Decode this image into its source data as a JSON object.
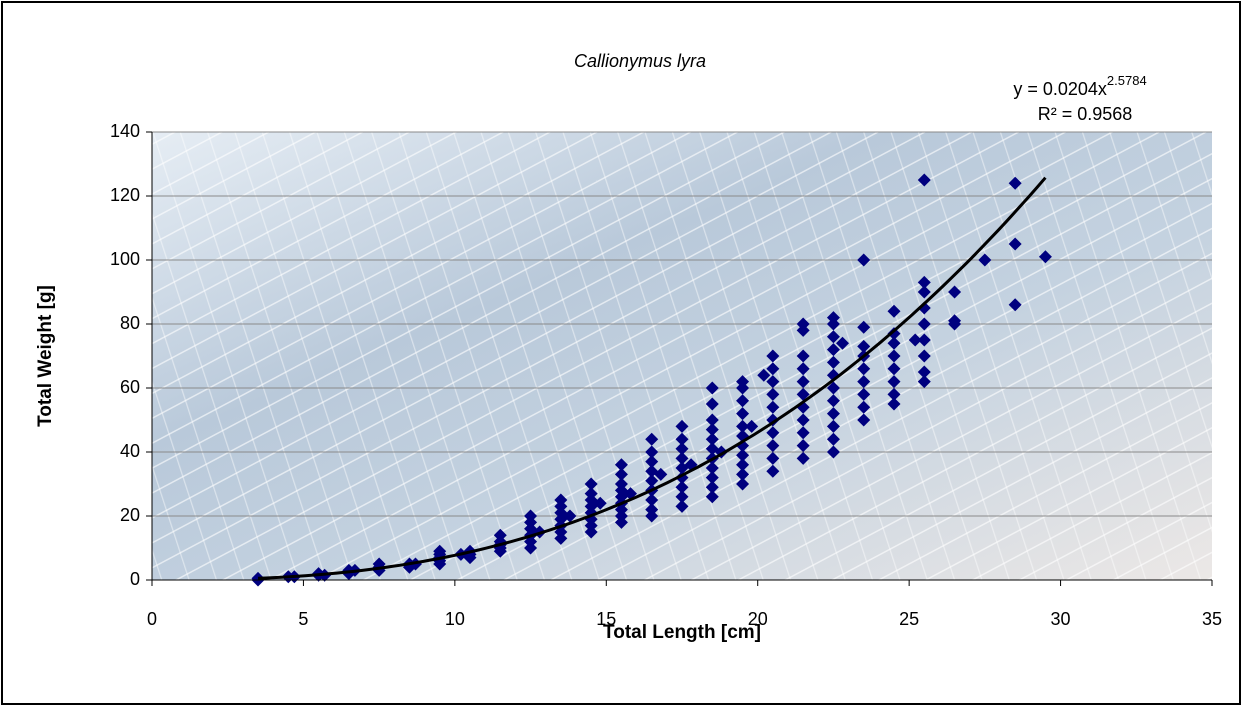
{
  "chart_data": {
    "type": "scatter",
    "title": "Callionymus lyra",
    "x_label": "Total Length [cm]",
    "y_label": "Total Weight [g]",
    "color": "#00007f",
    "xlim": [
      0,
      35
    ],
    "xticks": [
      0,
      5,
      10,
      15,
      20,
      25,
      30,
      35
    ],
    "ylim": [
      0,
      140
    ],
    "yticks": [
      0,
      20,
      40,
      60,
      80,
      100,
      120,
      140
    ],
    "grid": true,
    "x": [
      3.5,
      3.5,
      4.5,
      4.7,
      5.5,
      5.5,
      5.7,
      6.5,
      6.5,
      6.7,
      7.5,
      7.5,
      7.5,
      8.5,
      8.5,
      8.7,
      9.5,
      9.5,
      9.5,
      9.5,
      9.5,
      10.5,
      10.5,
      10.5,
      10.2,
      11.5,
      11.5,
      11.5,
      11.5,
      11.5,
      12.5,
      12.5,
      12.5,
      12.5,
      12.5,
      12.5,
      12.8,
      13.5,
      13.5,
      13.5,
      13.5,
      13.5,
      13.5,
      13.5,
      13.8,
      14.5,
      14.5,
      14.5,
      14.5,
      14.5,
      14.5,
      14.5,
      14.5,
      14.8,
      15.5,
      15.5,
      15.5,
      15.5,
      15.5,
      15.5,
      15.5,
      15.5,
      15.5,
      15.8,
      16.5,
      16.5,
      16.5,
      16.5,
      16.5,
      16.5,
      16.5,
      16.5,
      16.5,
      16.8,
      17.5,
      17.5,
      17.5,
      17.5,
      17.5,
      17.5,
      17.5,
      17.5,
      17.5,
      17.8,
      18.5,
      18.5,
      18.5,
      18.5,
      18.5,
      18.5,
      18.5,
      18.5,
      18.5,
      18.5,
      18.5,
      18.8,
      19.5,
      19.5,
      19.5,
      19.5,
      19.5,
      19.5,
      19.5,
      19.5,
      19.5,
      19.5,
      19.5,
      19.8,
      20.5,
      20.5,
      20.5,
      20.5,
      20.5,
      20.5,
      20.5,
      20.5,
      20.5,
      20.5,
      20.2,
      21.5,
      21.5,
      21.5,
      21.5,
      21.5,
      21.5,
      21.5,
      21.5,
      21.5,
      21.5,
      21.5,
      22.5,
      22.5,
      22.5,
      22.5,
      22.5,
      22.5,
      22.5,
      22.5,
      22.5,
      22.5,
      22.5,
      22.5,
      22.8,
      23.5,
      23.5,
      23.5,
      23.5,
      23.5,
      23.5,
      23.5,
      23.5,
      23.5,
      24.5,
      24.5,
      24.5,
      24.5,
      24.5,
      24.5,
      24.5,
      24.5,
      25.5,
      25.5,
      25.5,
      25.5,
      25.5,
      25.5,
      25.5,
      25.5,
      25.5,
      25.2,
      26.5,
      26.5,
      26.5,
      27.5,
      28.5,
      28.5,
      28.5,
      29.5
    ],
    "values": [
      0,
      0.5,
      1,
      1,
      2,
      1.5,
      1.5,
      2,
      3,
      3,
      3,
      4,
      5,
      4,
      5,
      5,
      5,
      6,
      7,
      8,
      9,
      7,
      8,
      9,
      8,
      9,
      10,
      11,
      12,
      14,
      10,
      12,
      14,
      16,
      18,
      20,
      15,
      13,
      15,
      17,
      19,
      21,
      23,
      25,
      20,
      15,
      17,
      19,
      21,
      23,
      25,
      27,
      30,
      24,
      18,
      20,
      22,
      24,
      26,
      28,
      30,
      33,
      36,
      27,
      20,
      22,
      25,
      28,
      31,
      34,
      37,
      40,
      44,
      33,
      23,
      26,
      29,
      32,
      35,
      38,
      41,
      44,
      48,
      36,
      26,
      29,
      32,
      35,
      38,
      41,
      44,
      47,
      50,
      55,
      60,
      40,
      30,
      33,
      36,
      39,
      42,
      45,
      48,
      52,
      56,
      60,
      62,
      48,
      34,
      38,
      42,
      46,
      50,
      54,
      58,
      62,
      66,
      70,
      64,
      38,
      42,
      46,
      50,
      54,
      58,
      62,
      66,
      70,
      78,
      80,
      40,
      44,
      48,
      52,
      56,
      60,
      64,
      68,
      72,
      76,
      80,
      82,
      74,
      50,
      54,
      58,
      62,
      66,
      70,
      73,
      79,
      100,
      55,
      58,
      62,
      66,
      70,
      74,
      77,
      84,
      62,
      65,
      70,
      75,
      80,
      85,
      90,
      93,
      125,
      75,
      80,
      81,
      90,
      100,
      86,
      105,
      124,
      101
    ],
    "trendline": {
      "equation": "y = 0.0204x",
      "exponent_label": "2.5784",
      "r_squared_label": "R² = 0.9568",
      "coefficient": 0.0204,
      "exponent": 2.5784,
      "x_range": [
        3.5,
        29.5
      ],
      "color": "#000000"
    }
  }
}
